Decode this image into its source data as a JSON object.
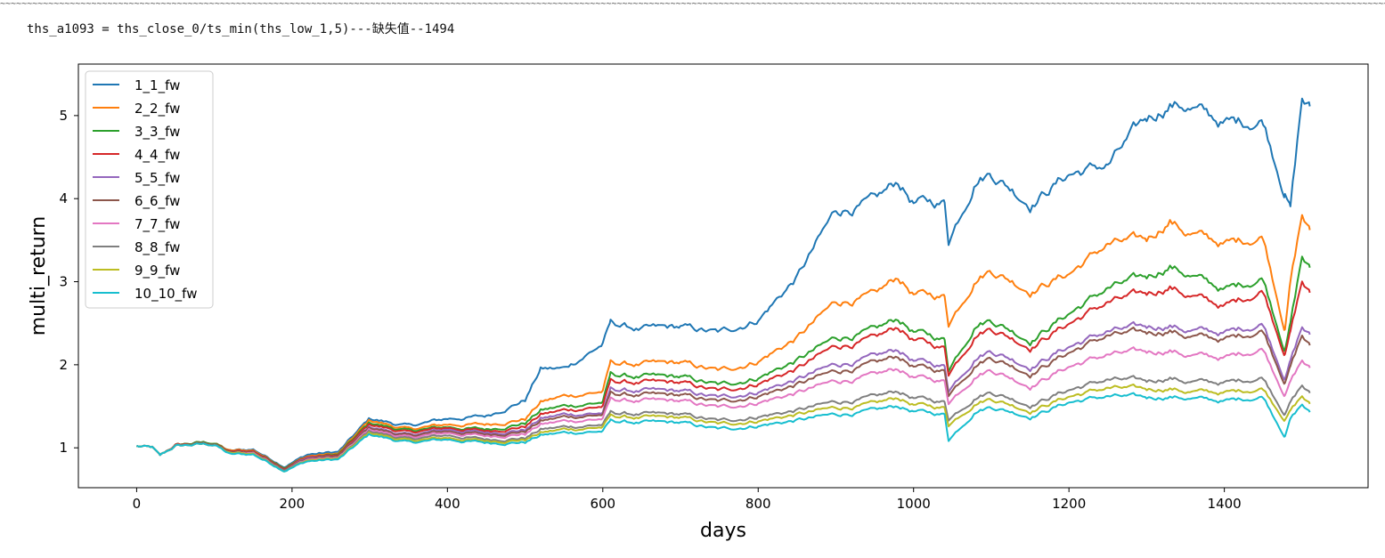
{
  "header": {
    "rule": "~~~~~~~~~~~~~~~~~~~~~~~~~~~~~~~~~~~~~~~~~~~~~~~~~~~~~~~~~~~~~~~~~~~~~~~~~~~~~~~~~~~~~~~~~~~~~~~~~~~~~~~~~~~~~~~~~~~~~~~~~~~~~~~~~~~~~~~~~~~~~~~~~~~~~~~~~~~~~~~~~~~~~~~~~~~~~~~~~~~~~~~~~~~~~~~~~~~~~~~~~~~~~~~~~~~~~~~~~~~~~~~~~~~~~~~~~~~~~~~~~~~~~~~~~~~~~~~~~~~",
    "output_text": "ths_a1093 = ths_close_0/ts_min(ths_low_1,5)---缺失值--1494"
  },
  "chart_data": {
    "type": "line",
    "title": "",
    "xlabel": "days",
    "ylabel": "multi_return",
    "xlim": [
      -75,
      1585
    ],
    "ylim": [
      0.52,
      5.62
    ],
    "x_ticks": [
      0,
      200,
      400,
      600,
      800,
      1000,
      1200,
      1400
    ],
    "y_ticks": [
      1,
      2,
      3,
      4,
      5
    ],
    "grid": false,
    "legend_position": "top-left",
    "x": [
      0,
      20,
      30,
      50,
      80,
      100,
      120,
      150,
      190,
      220,
      260,
      300,
      350,
      400,
      450,
      500,
      520,
      550,
      600,
      610,
      650,
      700,
      750,
      800,
      850,
      900,
      950,
      980,
      1000,
      1040,
      1045,
      1080,
      1100,
      1150,
      1200,
      1250,
      1300,
      1330,
      1350,
      1400,
      1450,
      1478,
      1485,
      1500,
      1510
    ],
    "series": [
      {
        "name": "1_1_fw",
        "color": "#1f77b4",
        "values": [
          1.02,
          1.0,
          0.9,
          1.03,
          1.06,
          1.06,
          0.96,
          0.98,
          0.78,
          0.92,
          0.95,
          1.35,
          1.26,
          1.35,
          1.38,
          1.58,
          1.95,
          1.95,
          2.25,
          2.5,
          2.42,
          2.45,
          2.38,
          2.55,
          3.05,
          3.85,
          3.95,
          4.2,
          3.95,
          3.95,
          3.5,
          4.25,
          4.32,
          3.95,
          4.3,
          4.4,
          4.95,
          5.15,
          5.12,
          4.9,
          4.95,
          4.1,
          3.9,
          5.2,
          5.08
        ]
      },
      {
        "name": "2_2_fw",
        "color": "#ff7f0e",
        "values": [
          1.02,
          1.0,
          0.9,
          1.03,
          1.06,
          1.06,
          0.96,
          0.97,
          0.77,
          0.9,
          0.93,
          1.33,
          1.22,
          1.28,
          1.28,
          1.35,
          1.55,
          1.62,
          1.68,
          2.02,
          2.0,
          2.02,
          1.92,
          2.05,
          2.32,
          2.75,
          2.82,
          3.05,
          2.85,
          2.82,
          2.5,
          3.05,
          3.15,
          2.9,
          3.1,
          3.45,
          3.5,
          3.75,
          3.6,
          3.45,
          3.55,
          2.45,
          3.0,
          3.8,
          3.6
        ]
      },
      {
        "name": "3_3_fw",
        "color": "#2ca02c",
        "values": [
          1.02,
          1.0,
          0.9,
          1.03,
          1.06,
          1.06,
          0.95,
          0.96,
          0.77,
          0.89,
          0.92,
          1.3,
          1.2,
          1.25,
          1.22,
          1.3,
          1.45,
          1.5,
          1.55,
          1.88,
          1.85,
          1.85,
          1.75,
          1.85,
          2.05,
          2.32,
          2.4,
          2.55,
          2.4,
          2.3,
          1.95,
          2.5,
          2.55,
          2.3,
          2.62,
          2.92,
          3.05,
          3.2,
          3.1,
          2.9,
          3.05,
          2.2,
          2.5,
          3.3,
          3.15
        ]
      },
      {
        "name": "4_4_fw",
        "color": "#d62728",
        "values": [
          1.02,
          1.0,
          0.9,
          1.03,
          1.05,
          1.05,
          0.95,
          0.96,
          0.76,
          0.89,
          0.91,
          1.28,
          1.18,
          1.24,
          1.2,
          1.26,
          1.4,
          1.45,
          1.5,
          1.8,
          1.78,
          1.78,
          1.68,
          1.78,
          1.95,
          2.22,
          2.3,
          2.45,
          2.3,
          2.2,
          1.9,
          2.38,
          2.45,
          2.22,
          2.5,
          2.75,
          2.85,
          2.95,
          2.85,
          2.7,
          2.9,
          2.15,
          2.4,
          3.0,
          2.85
        ]
      },
      {
        "name": "5_5_fw",
        "color": "#9467bd",
        "values": [
          1.02,
          1.0,
          0.9,
          1.02,
          1.05,
          1.05,
          0.94,
          0.95,
          0.75,
          0.88,
          0.9,
          1.25,
          1.15,
          1.22,
          1.18,
          1.22,
          1.35,
          1.4,
          1.42,
          1.7,
          1.68,
          1.68,
          1.6,
          1.68,
          1.82,
          2.0,
          2.08,
          2.18,
          2.05,
          1.98,
          1.7,
          2.1,
          2.18,
          1.98,
          2.22,
          2.4,
          2.45,
          2.48,
          2.42,
          2.38,
          2.5,
          1.85,
          2.05,
          2.45,
          2.35
        ]
      },
      {
        "name": "6_6_fw",
        "color": "#8c564b",
        "values": [
          1.02,
          1.0,
          0.9,
          1.02,
          1.05,
          1.05,
          0.94,
          0.95,
          0.75,
          0.87,
          0.9,
          1.24,
          1.14,
          1.2,
          1.16,
          1.2,
          1.32,
          1.37,
          1.4,
          1.65,
          1.63,
          1.63,
          1.55,
          1.63,
          1.76,
          1.92,
          2.0,
          2.1,
          1.98,
          1.92,
          1.65,
          2.02,
          2.1,
          1.9,
          2.15,
          2.35,
          2.38,
          2.42,
          2.35,
          2.3,
          2.42,
          1.8,
          1.98,
          2.35,
          2.22
        ]
      },
      {
        "name": "7_7_fw",
        "color": "#e377c2",
        "values": [
          1.02,
          1.0,
          0.9,
          1.02,
          1.04,
          1.04,
          0.93,
          0.94,
          0.74,
          0.86,
          0.88,
          1.22,
          1.12,
          1.18,
          1.14,
          1.17,
          1.28,
          1.32,
          1.35,
          1.58,
          1.56,
          1.56,
          1.48,
          1.55,
          1.66,
          1.8,
          1.86,
          1.95,
          1.85,
          1.8,
          1.55,
          1.88,
          1.95,
          1.75,
          1.98,
          2.12,
          2.15,
          2.18,
          2.12,
          2.08,
          2.2,
          1.65,
          1.8,
          2.05,
          1.95
        ]
      },
      {
        "name": "8_8_fw",
        "color": "#7f7f7f",
        "values": [
          1.02,
          1.0,
          0.9,
          1.02,
          1.04,
          1.04,
          0.93,
          0.93,
          0.74,
          0.85,
          0.87,
          1.2,
          1.1,
          1.15,
          1.1,
          1.12,
          1.22,
          1.25,
          1.28,
          1.42,
          1.4,
          1.4,
          1.32,
          1.38,
          1.45,
          1.55,
          1.6,
          1.68,
          1.6,
          1.55,
          1.35,
          1.62,
          1.68,
          1.52,
          1.7,
          1.82,
          1.8,
          1.85,
          1.8,
          1.78,
          1.85,
          1.42,
          1.55,
          1.75,
          1.65
        ]
      },
      {
        "name": "9_9_fw",
        "color": "#bcbd22",
        "values": [
          1.02,
          1.0,
          0.9,
          1.02,
          1.04,
          1.04,
          0.93,
          0.93,
          0.73,
          0.85,
          0.87,
          1.18,
          1.08,
          1.12,
          1.08,
          1.1,
          1.18,
          1.22,
          1.25,
          1.38,
          1.36,
          1.36,
          1.28,
          1.33,
          1.4,
          1.48,
          1.52,
          1.6,
          1.52,
          1.48,
          1.28,
          1.55,
          1.6,
          1.45,
          1.62,
          1.72,
          1.7,
          1.72,
          1.68,
          1.66,
          1.72,
          1.35,
          1.45,
          1.62,
          1.52
        ]
      },
      {
        "name": "10_10_fw",
        "color": "#17becf",
        "values": [
          1.02,
          1.0,
          0.9,
          1.02,
          1.04,
          1.04,
          0.92,
          0.92,
          0.73,
          0.84,
          0.86,
          1.16,
          1.06,
          1.1,
          1.06,
          1.07,
          1.15,
          1.18,
          1.2,
          1.32,
          1.3,
          1.3,
          1.22,
          1.27,
          1.33,
          1.4,
          1.44,
          1.5,
          1.44,
          1.4,
          1.1,
          1.45,
          1.5,
          1.38,
          1.55,
          1.62,
          1.6,
          1.62,
          1.6,
          1.56,
          1.62,
          1.15,
          1.35,
          1.52,
          1.42
        ]
      }
    ]
  }
}
